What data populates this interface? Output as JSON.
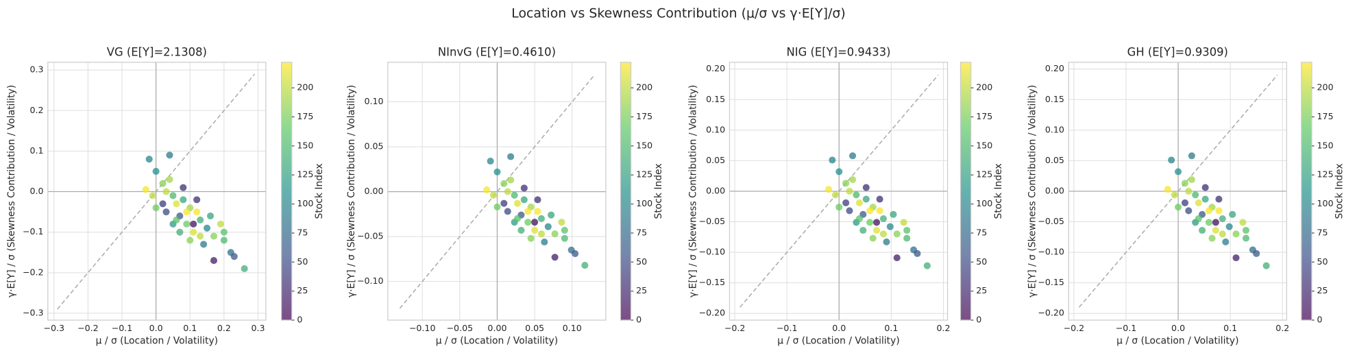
{
  "title": "Location vs Skewness Contribution (μ/σ vs γ·E[Y]/σ)",
  "colormap": [
    "#440154",
    "#3b528b",
    "#21918c",
    "#5ec962",
    "#fde725"
  ],
  "chart_data": [
    {
      "type": "scatter",
      "title": "VG (E[Y]=2.1308)",
      "x_label": "μ / σ (Location / Volatility)",
      "y_label": "γ·E[Y] / σ (Skewness Contribution / Volatility)",
      "colorbar_label": "Stock Index",
      "grid": true,
      "xlim": [
        -0.318,
        0.323
      ],
      "ylim": [
        -0.317,
        0.319
      ],
      "clim": [
        0,
        222
      ],
      "diagonal": [
        -0.29,
        0.29
      ],
      "xticks": [
        {
          "value": -0.3,
          "label": "−0.3"
        },
        {
          "value": -0.2,
          "label": "−0.2"
        },
        {
          "value": -0.1,
          "label": "−0.1"
        },
        {
          "value": 0,
          "label": "0.0"
        },
        {
          "value": 0.1,
          "label": "0.1"
        },
        {
          "value": 0.2,
          "label": "0.2"
        },
        {
          "value": 0.3,
          "label": "0.3"
        }
      ],
      "yticks": [
        {
          "value": -0.3,
          "label": "−0.3"
        },
        {
          "value": -0.2,
          "label": "−0.2"
        },
        {
          "value": -0.1,
          "label": "−0.1"
        },
        {
          "value": 0,
          "label": "0.0"
        },
        {
          "value": 0.1,
          "label": "0.1"
        },
        {
          "value": 0.2,
          "label": "0.2"
        },
        {
          "value": 0.3,
          "label": "0.3"
        }
      ],
      "cticks": [
        0,
        25,
        50,
        75,
        100,
        125,
        150,
        175,
        200
      ],
      "series": [
        {
          "x": [
            -0.03,
            -0.02,
            0.04,
            0.0,
            0.02,
            0.03,
            0.05,
            0.06,
            0.08,
            0.1,
            0.12,
            0.07,
            0.09,
            0.11,
            0.13,
            0.15,
            0.17,
            0.2,
            0.22,
            0.23,
            0.26,
            0.17,
            0.14,
            0.05,
            0.02,
            -0.01,
            0.0,
            0.04,
            0.08,
            0.12,
            0.1,
            0.06,
            0.16,
            0.19,
            0.2,
            0.09,
            0.03,
            0.13,
            0.07,
            0.11
          ],
          "y": [
            0.005,
            0.08,
            0.09,
            0.05,
            0.02,
            0.0,
            -0.01,
            -0.03,
            -0.02,
            -0.04,
            -0.05,
            -0.06,
            -0.08,
            -0.1,
            -0.07,
            -0.09,
            -0.11,
            -0.12,
            -0.15,
            -0.16,
            -0.19,
            -0.17,
            -0.13,
            -0.08,
            -0.03,
            -0.01,
            -0.04,
            0.03,
            0.01,
            -0.02,
            -0.12,
            -0.07,
            -0.06,
            -0.08,
            -0.1,
            -0.05,
            -0.05,
            -0.11,
            -0.1,
            -0.08
          ],
          "c": [
            220,
            100,
            90,
            110,
            180,
            200,
            150,
            210,
            130,
            190,
            220,
            60,
            170,
            210,
            140,
            100,
            180,
            150,
            80,
            60,
            140,
            20,
            90,
            120,
            40,
            200,
            170,
            190,
            30,
            30,
            180,
            160,
            130,
            200,
            160,
            220,
            50,
            200,
            140,
            10
          ]
        }
      ]
    },
    {
      "type": "scatter",
      "title": "NInvG (E[Y]=0.4610)",
      "x_label": "μ / σ (Location / Volatility)",
      "y_label": "γ·E[Y] / σ (Skewness Contribution / Volatility)",
      "colorbar_label": "Stock Index",
      "grid": true,
      "xlim": [
        -0.146,
        0.145
      ],
      "ylim": [
        -0.143,
        0.144
      ],
      "clim": [
        0,
        222
      ],
      "diagonal": [
        -0.13,
        0.13
      ],
      "xticks": [
        {
          "value": -0.1,
          "label": "−0.10"
        },
        {
          "value": -0.05,
          "label": "−0.05"
        },
        {
          "value": 0,
          "label": "0.00"
        },
        {
          "value": 0.05,
          "label": "0.05"
        },
        {
          "value": 0.1,
          "label": "0.10"
        }
      ],
      "yticks": [
        {
          "value": -0.1,
          "label": "−0.10"
        },
        {
          "value": -0.05,
          "label": "−0.05"
        },
        {
          "value": 0,
          "label": "0.00"
        },
        {
          "value": 0.05,
          "label": "0.05"
        },
        {
          "value": 0.1,
          "label": "0.10"
        }
      ],
      "cticks": [
        0,
        25,
        50,
        75,
        100,
        125,
        150,
        175,
        200
      ],
      "series": [
        {
          "x": [
            -0.014,
            -0.009,
            0.018,
            0.0,
            0.009,
            0.014,
            0.023,
            0.027,
            0.036,
            0.045,
            0.054,
            0.032,
            0.041,
            0.05,
            0.059,
            0.068,
            0.077,
            0.09,
            0.099,
            0.104,
            0.117,
            0.077,
            0.063,
            0.023,
            0.009,
            -0.005,
            0.0,
            0.018,
            0.036,
            0.054,
            0.045,
            0.027,
            0.072,
            0.086,
            0.09,
            0.041,
            0.014,
            0.059,
            0.032,
            0.05
          ],
          "y": [
            0.002,
            0.034,
            0.039,
            0.022,
            0.009,
            0.0,
            -0.004,
            -0.013,
            -0.009,
            -0.017,
            -0.022,
            -0.026,
            -0.034,
            -0.043,
            -0.03,
            -0.039,
            -0.047,
            -0.052,
            -0.065,
            -0.069,
            -0.082,
            -0.073,
            -0.056,
            -0.034,
            -0.013,
            -0.004,
            -0.017,
            0.013,
            0.004,
            -0.009,
            -0.052,
            -0.03,
            -0.026,
            -0.034,
            -0.043,
            -0.022,
            -0.022,
            -0.047,
            -0.043,
            -0.034
          ],
          "c": [
            220,
            100,
            90,
            110,
            180,
            200,
            150,
            210,
            130,
            190,
            220,
            60,
            170,
            210,
            140,
            100,
            180,
            150,
            80,
            60,
            140,
            20,
            90,
            120,
            40,
            200,
            170,
            190,
            30,
            30,
            180,
            160,
            130,
            200,
            160,
            220,
            50,
            200,
            140,
            10
          ]
        }
      ]
    },
    {
      "type": "scatter",
      "title": "NIG (E[Y]=0.9433)",
      "x_label": "μ / σ (Location / Volatility)",
      "y_label": "γ·E[Y] / σ (Skewness Contribution / Volatility)",
      "colorbar_label": "Stock Index",
      "grid": true,
      "xlim": [
        -0.21,
        0.208
      ],
      "ylim": [
        -0.211,
        0.211
      ],
      "clim": [
        0,
        222
      ],
      "diagonal": [
        -0.19,
        0.19
      ],
      "xticks": [
        {
          "value": -0.2,
          "label": "−0.2"
        },
        {
          "value": -0.1,
          "label": "−0.1"
        },
        {
          "value": 0,
          "label": "0.0"
        },
        {
          "value": 0.1,
          "label": "0.1"
        },
        {
          "value": 0.2,
          "label": "0.2"
        }
      ],
      "yticks": [
        {
          "value": -0.2,
          "label": "−0.20"
        },
        {
          "value": -0.15,
          "label": "−0.15"
        },
        {
          "value": -0.1,
          "label": "−0.10"
        },
        {
          "value": -0.05,
          "label": "−0.05"
        },
        {
          "value": 0,
          "label": "0.00"
        },
        {
          "value": 0.05,
          "label": "0.05"
        },
        {
          "value": 0.1,
          "label": "0.10"
        },
        {
          "value": 0.15,
          "label": "0.15"
        },
        {
          "value": 0.2,
          "label": "0.20"
        }
      ],
      "cticks": [
        0,
        25,
        50,
        75,
        100,
        125,
        150,
        175,
        200
      ],
      "series": [
        {
          "x": [
            -0.02,
            -0.013,
            0.026,
            0.0,
            0.013,
            0.02,
            0.033,
            0.039,
            0.052,
            0.065,
            0.078,
            0.046,
            0.059,
            0.072,
            0.085,
            0.098,
            0.111,
            0.13,
            0.143,
            0.15,
            0.169,
            0.111,
            0.091,
            0.033,
            0.013,
            -0.007,
            0.0,
            0.026,
            0.052,
            0.078,
            0.065,
            0.039,
            0.104,
            0.124,
            0.13,
            0.059,
            0.02,
            0.085,
            0.046,
            0.072
          ],
          "y": [
            0.003,
            0.051,
            0.058,
            0.032,
            0.013,
            0.0,
            -0.006,
            -0.019,
            -0.013,
            -0.026,
            -0.032,
            -0.038,
            -0.051,
            -0.064,
            -0.045,
            -0.058,
            -0.07,
            -0.077,
            -0.096,
            -0.102,
            -0.122,
            -0.109,
            -0.083,
            -0.051,
            -0.019,
            -0.006,
            -0.026,
            0.019,
            0.006,
            -0.013,
            -0.077,
            -0.045,
            -0.038,
            -0.051,
            -0.064,
            -0.032,
            -0.032,
            -0.07,
            -0.064,
            -0.051
          ],
          "c": [
            220,
            100,
            90,
            110,
            180,
            200,
            150,
            210,
            130,
            190,
            220,
            60,
            170,
            210,
            140,
            100,
            180,
            150,
            80,
            60,
            140,
            20,
            90,
            120,
            40,
            200,
            170,
            190,
            30,
            30,
            180,
            160,
            130,
            200,
            160,
            220,
            50,
            200,
            140,
            10
          ]
        }
      ]
    },
    {
      "type": "scatter",
      "title": "GH (E[Y]=0.9309)",
      "x_label": "μ / σ (Location / Volatility)",
      "y_label": "γ·E[Y] / σ (Skewness Contribution / Volatility)",
      "colorbar_label": "Stock Index",
      "grid": true,
      "xlim": [
        -0.21,
        0.208
      ],
      "ylim": [
        -0.211,
        0.211
      ],
      "clim": [
        0,
        222
      ],
      "diagonal": [
        -0.19,
        0.19
      ],
      "xticks": [
        {
          "value": -0.2,
          "label": "−0.2"
        },
        {
          "value": -0.1,
          "label": "−0.1"
        },
        {
          "value": 0,
          "label": "0.0"
        },
        {
          "value": 0.1,
          "label": "0.1"
        },
        {
          "value": 0.2,
          "label": "0.2"
        }
      ],
      "yticks": [
        {
          "value": -0.2,
          "label": "−0.20"
        },
        {
          "value": -0.15,
          "label": "−0.15"
        },
        {
          "value": -0.1,
          "label": "−0.10"
        },
        {
          "value": -0.05,
          "label": "−0.05"
        },
        {
          "value": 0,
          "label": "0.00"
        },
        {
          "value": 0.05,
          "label": "0.05"
        },
        {
          "value": 0.1,
          "label": "0.10"
        },
        {
          "value": 0.15,
          "label": "0.15"
        },
        {
          "value": 0.2,
          "label": "0.20"
        }
      ],
      "cticks": [
        0,
        25,
        50,
        75,
        100,
        125,
        150,
        175,
        200
      ],
      "series": [
        {
          "x": [
            -0.02,
            -0.013,
            0.026,
            0.0,
            0.013,
            0.02,
            0.033,
            0.039,
            0.052,
            0.065,
            0.078,
            0.046,
            0.059,
            0.072,
            0.085,
            0.098,
            0.111,
            0.13,
            0.143,
            0.15,
            0.169,
            0.111,
            0.091,
            0.033,
            0.013,
            -0.007,
            0.0,
            0.026,
            0.052,
            0.078,
            0.065,
            0.039,
            0.104,
            0.124,
            0.13,
            0.059,
            0.02,
            0.085,
            0.046,
            0.072
          ],
          "y": [
            0.003,
            0.051,
            0.058,
            0.032,
            0.013,
            0.0,
            -0.006,
            -0.019,
            -0.013,
            -0.026,
            -0.032,
            -0.038,
            -0.051,
            -0.064,
            -0.045,
            -0.058,
            -0.07,
            -0.077,
            -0.096,
            -0.102,
            -0.122,
            -0.109,
            -0.083,
            -0.051,
            -0.019,
            -0.006,
            -0.026,
            0.019,
            0.006,
            -0.013,
            -0.077,
            -0.045,
            -0.038,
            -0.051,
            -0.064,
            -0.032,
            -0.032,
            -0.07,
            -0.064,
            -0.051
          ],
          "c": [
            220,
            100,
            90,
            110,
            180,
            200,
            150,
            210,
            130,
            190,
            220,
            60,
            170,
            210,
            140,
            100,
            180,
            150,
            80,
            60,
            140,
            20,
            90,
            120,
            40,
            200,
            170,
            190,
            30,
            30,
            180,
            160,
            130,
            200,
            160,
            220,
            50,
            200,
            140,
            10
          ]
        }
      ]
    }
  ]
}
